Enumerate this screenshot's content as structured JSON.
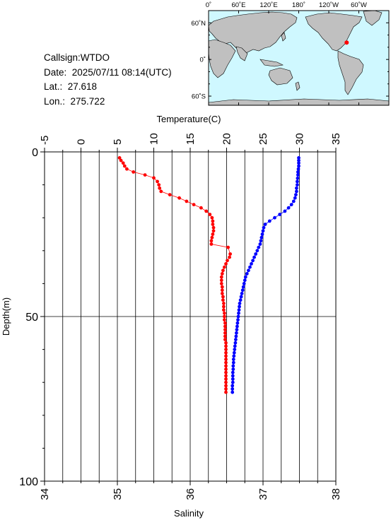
{
  "info": {
    "callsign": "Callsign:WTDO",
    "date": "Date:  2025/07/11 08:14(UTC)",
    "lat": "Lat.:  27.618",
    "lon": "Lon.:  275.722"
  },
  "map": {
    "lon_ticks": [
      "0˚",
      "60˚E",
      "120˚E",
      "180˚",
      "120˚W",
      "60˚W"
    ],
    "lat_ticks": [
      "60˚N",
      "0˚",
      "60˚S"
    ],
    "ocean_color": "#cff8ff",
    "land_color": "#c0c0c0",
    "marker_color": "#ff0000",
    "station_lon": 275.722,
    "station_lat": 27.618
  },
  "chart_data": {
    "type": "scatter",
    "temperature_axis": {
      "label": "Temperature(C)",
      "range": [
        -5,
        35
      ],
      "ticks": [
        "-5",
        "0",
        "5",
        "10",
        "15",
        "20",
        "25",
        "30",
        "35"
      ]
    },
    "salinity_axis": {
      "label": "Salinity",
      "range": [
        34,
        38
      ],
      "ticks": [
        "34",
        "35",
        "36",
        "37",
        "38"
      ]
    },
    "depth_axis": {
      "label": "Depth(m)",
      "range": [
        0,
        100
      ],
      "ticks": [
        "0",
        "50",
        "100"
      ],
      "inverted": true
    },
    "grid": true,
    "series": [
      {
        "key": "temperature",
        "color": "#0000ff",
        "axis": "temperature",
        "points": [
          [
            29.9,
            1.8
          ],
          [
            29.9,
            2.6
          ],
          [
            29.9,
            3.4
          ],
          [
            29.9,
            4.3
          ],
          [
            29.85,
            5.2
          ],
          [
            29.8,
            6.1
          ],
          [
            29.8,
            7.0
          ],
          [
            29.75,
            8.0
          ],
          [
            29.7,
            9.0
          ],
          [
            29.7,
            10.0
          ],
          [
            29.6,
            11.0
          ],
          [
            29.6,
            12.0
          ],
          [
            29.5,
            13.0
          ],
          [
            29.4,
            14.0
          ],
          [
            29.2,
            15.0
          ],
          [
            28.9,
            16.0
          ],
          [
            28.5,
            17.0
          ],
          [
            28.0,
            18.0
          ],
          [
            27.3,
            19.0
          ],
          [
            26.6,
            20.0
          ],
          [
            25.9,
            21.0
          ],
          [
            25.3,
            22.0
          ],
          [
            25.1,
            23.0
          ],
          [
            25.0,
            24.0
          ],
          [
            24.9,
            25.0
          ],
          [
            24.8,
            26.0
          ],
          [
            24.7,
            27.0
          ],
          [
            24.6,
            28.0
          ],
          [
            24.4,
            29.0
          ],
          [
            24.2,
            30.0
          ],
          [
            24.0,
            31.0
          ],
          [
            23.8,
            32.0
          ],
          [
            23.6,
            33.0
          ],
          [
            23.4,
            34.0
          ],
          [
            23.2,
            35.0
          ],
          [
            23.0,
            36.0
          ],
          [
            22.8,
            37.0
          ],
          [
            22.6,
            38.0
          ],
          [
            22.5,
            39.0
          ],
          [
            22.4,
            40.0
          ],
          [
            22.3,
            41.0
          ],
          [
            22.2,
            42.0
          ],
          [
            22.1,
            43.0
          ],
          [
            22.0,
            44.0
          ],
          [
            21.9,
            45.0
          ],
          [
            21.8,
            46.0
          ],
          [
            21.75,
            47.0
          ],
          [
            21.7,
            48.0
          ],
          [
            21.65,
            49.0
          ],
          [
            21.6,
            50.0
          ],
          [
            21.55,
            51.0
          ],
          [
            21.5,
            52.0
          ],
          [
            21.45,
            53.0
          ],
          [
            21.4,
            54.0
          ],
          [
            21.35,
            55.0
          ],
          [
            21.3,
            56.0
          ],
          [
            21.25,
            57.0
          ],
          [
            21.2,
            58.0
          ],
          [
            21.15,
            59.0
          ],
          [
            21.1,
            60.0
          ],
          [
            21.05,
            61.0
          ],
          [
            21.0,
            62.0
          ],
          [
            20.95,
            63.0
          ],
          [
            20.95,
            64.0
          ],
          [
            20.9,
            65.0
          ],
          [
            20.9,
            66.0
          ],
          [
            20.85,
            67.0
          ],
          [
            20.85,
            68.0
          ],
          [
            20.85,
            69.0
          ],
          [
            20.85,
            70.0
          ],
          [
            20.8,
            71.0
          ],
          [
            20.8,
            72.0
          ],
          [
            20.8,
            73.0
          ]
        ]
      },
      {
        "key": "salinity",
        "color": "#ff0000",
        "axis": "salinity",
        "points": [
          [
            35.03,
            1.8
          ],
          [
            35.05,
            2.6
          ],
          [
            35.08,
            3.4
          ],
          [
            35.1,
            4.3
          ],
          [
            35.13,
            5.2
          ],
          [
            35.22,
            6.1
          ],
          [
            35.38,
            7.0
          ],
          [
            35.5,
            7.9
          ],
          [
            35.55,
            9.0
          ],
          [
            35.57,
            10.0
          ],
          [
            35.58,
            11.0
          ],
          [
            35.6,
            12.0
          ],
          [
            35.72,
            13.0
          ],
          [
            35.85,
            14.0
          ],
          [
            35.95,
            15.0
          ],
          [
            36.05,
            16.0
          ],
          [
            36.15,
            17.0
          ],
          [
            36.22,
            18.0
          ],
          [
            36.27,
            19.0
          ],
          [
            36.3,
            20.0
          ],
          [
            36.31,
            21.0
          ],
          [
            36.31,
            22.0
          ],
          [
            36.32,
            23.0
          ],
          [
            36.32,
            24.0
          ],
          [
            36.31,
            25.0
          ],
          [
            36.3,
            26.0
          ],
          [
            36.29,
            27.0
          ],
          [
            36.29,
            28.0
          ],
          [
            36.52,
            29.0
          ],
          [
            36.55,
            31.0
          ],
          [
            36.54,
            32.0
          ],
          [
            36.51,
            33.0
          ],
          [
            36.49,
            34.0
          ],
          [
            36.47,
            35.0
          ],
          [
            36.45,
            36.0
          ],
          [
            36.44,
            37.0
          ],
          [
            36.43,
            38.0
          ],
          [
            36.43,
            39.0
          ],
          [
            36.43,
            40.0
          ],
          [
            36.44,
            41.0
          ],
          [
            36.44,
            42.0
          ],
          [
            36.44,
            43.0
          ],
          [
            36.45,
            44.0
          ],
          [
            36.45,
            45.0
          ],
          [
            36.46,
            46.0
          ],
          [
            36.46,
            47.0
          ],
          [
            36.46,
            48.0
          ],
          [
            36.47,
            49.0
          ],
          [
            36.47,
            50.0
          ],
          [
            36.47,
            51.0
          ],
          [
            36.48,
            52.0
          ],
          [
            36.48,
            53.0
          ],
          [
            36.48,
            54.0
          ],
          [
            36.48,
            55.0
          ],
          [
            36.48,
            56.0
          ],
          [
            36.48,
            57.0
          ],
          [
            36.49,
            58.0
          ],
          [
            36.49,
            59.0
          ],
          [
            36.49,
            60.0
          ],
          [
            36.49,
            61.0
          ],
          [
            36.49,
            62.0
          ],
          [
            36.49,
            63.0
          ],
          [
            36.49,
            64.0
          ],
          [
            36.49,
            65.0
          ],
          [
            36.49,
            66.0
          ],
          [
            36.49,
            67.0
          ],
          [
            36.49,
            68.0
          ],
          [
            36.49,
            69.0
          ],
          [
            36.49,
            70.0
          ],
          [
            36.49,
            71.0
          ],
          [
            36.49,
            72.0
          ],
          [
            36.49,
            73.0
          ]
        ]
      }
    ]
  }
}
